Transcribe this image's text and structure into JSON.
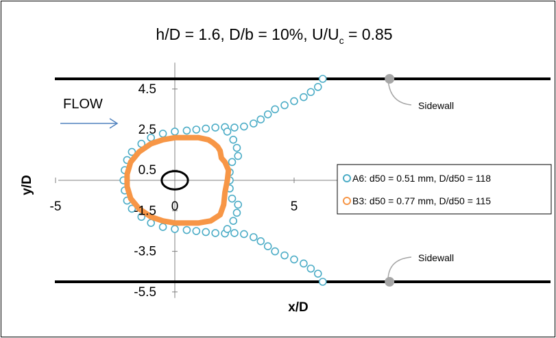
{
  "chart_data": {
    "type": "scatter",
    "title": "h/D = 1.6, D/b = 10%, U/Uc = 0.85",
    "title_parts": {
      "lead": "h/D = 1.6, D/b = 10%, U/U",
      "subscript": "c",
      "tail": " = 0.85"
    },
    "xlabel": "x/D",
    "ylabel": "y/D",
    "xlim": [
      -5,
      8.2
    ],
    "ylim": [
      -5.8,
      5.8
    ],
    "x_ticks": [
      "-5",
      "0",
      "5"
    ],
    "x_tick_values": [
      -5,
      0,
      5
    ],
    "y_ticks": [
      "4.5",
      "2.5",
      "0.5",
      "-1.5",
      "-3.5",
      "-5.5"
    ],
    "y_tick_values": [
      4.5,
      2.5,
      0.5,
      -1.5,
      -3.5,
      -5.5
    ],
    "grid": false,
    "legend_position": "right",
    "series": [
      {
        "name": "A6: d50 = 0.51 mm, D/d50 = 118",
        "color": "#4BACC6",
        "marker": "hollow-circle",
        "points": [
          [
            6.2,
            5.0
          ],
          [
            6.0,
            4.6
          ],
          [
            5.7,
            4.35
          ],
          [
            5.4,
            4.1
          ],
          [
            5.0,
            3.9
          ],
          [
            4.6,
            3.7
          ],
          [
            4.2,
            3.5
          ],
          [
            3.9,
            3.25
          ],
          [
            3.6,
            3.0
          ],
          [
            3.3,
            2.8
          ],
          [
            2.9,
            2.65
          ],
          [
            2.5,
            2.6
          ],
          [
            2.1,
            2.62
          ],
          [
            1.7,
            2.6
          ],
          [
            1.3,
            2.55
          ],
          [
            0.9,
            2.5
          ],
          [
            0.5,
            2.45
          ],
          [
            0.0,
            2.4
          ],
          [
            -0.5,
            2.3
          ],
          [
            -1.0,
            2.1
          ],
          [
            -1.4,
            1.8
          ],
          [
            -1.8,
            1.4
          ],
          [
            -2.0,
            1.0
          ],
          [
            -2.1,
            0.5
          ],
          [
            -2.15,
            0.0
          ],
          [
            -2.1,
            -0.5
          ],
          [
            -2.0,
            -1.0
          ],
          [
            -1.8,
            -1.4
          ],
          [
            -1.4,
            -1.8
          ],
          [
            -1.0,
            -2.1
          ],
          [
            -0.5,
            -2.3
          ],
          [
            0.0,
            -2.4
          ],
          [
            0.5,
            -2.45
          ],
          [
            0.9,
            -2.5
          ],
          [
            1.3,
            -2.55
          ],
          [
            1.7,
            -2.6
          ],
          [
            2.1,
            -2.62
          ],
          [
            2.5,
            -2.6
          ],
          [
            2.9,
            -2.65
          ],
          [
            3.3,
            -2.8
          ],
          [
            3.6,
            -3.0
          ],
          [
            3.9,
            -3.25
          ],
          [
            4.2,
            -3.5
          ],
          [
            4.6,
            -3.7
          ],
          [
            5.0,
            -3.9
          ],
          [
            5.4,
            -4.1
          ],
          [
            5.7,
            -4.35
          ],
          [
            6.0,
            -4.6
          ],
          [
            6.2,
            -5.0
          ],
          [
            2.2,
            2.4
          ],
          [
            2.45,
            2.0
          ],
          [
            2.6,
            1.6
          ],
          [
            2.65,
            1.2
          ],
          [
            2.4,
            0.9
          ],
          [
            2.3,
            0.4
          ],
          [
            2.3,
            0.0
          ],
          [
            2.3,
            -0.4
          ],
          [
            2.4,
            -0.9
          ],
          [
            2.65,
            -1.2
          ],
          [
            2.6,
            -1.6
          ],
          [
            2.45,
            -2.0
          ],
          [
            2.2,
            -2.4
          ]
        ]
      },
      {
        "name": "B3: d50 = 0.77 mm,  D/d50 = 115",
        "color": "#F79646",
        "marker": "filled-thick-line",
        "points": [
          [
            1.4,
            2.0
          ],
          [
            1.0,
            2.1
          ],
          [
            0.5,
            2.1
          ],
          [
            0.0,
            2.1
          ],
          [
            -0.5,
            2.0
          ],
          [
            -1.0,
            1.8
          ],
          [
            -1.5,
            1.4
          ],
          [
            -1.85,
            0.9
          ],
          [
            -2.0,
            0.3
          ],
          [
            -2.0,
            -0.3
          ],
          [
            -1.85,
            -0.9
          ],
          [
            -1.5,
            -1.4
          ],
          [
            -1.0,
            -1.8
          ],
          [
            -0.5,
            -2.0
          ],
          [
            0.0,
            -2.1
          ],
          [
            0.5,
            -2.1
          ],
          [
            1.0,
            -2.1
          ],
          [
            1.5,
            -2.0
          ],
          [
            1.9,
            -1.7
          ],
          [
            2.05,
            -1.2
          ],
          [
            2.1,
            -0.6
          ],
          [
            2.2,
            0.0
          ],
          [
            2.25,
            0.5
          ],
          [
            2.1,
            0.9
          ],
          [
            1.95,
            1.1
          ],
          [
            1.9,
            1.45
          ],
          [
            1.8,
            1.65
          ],
          [
            1.6,
            1.85
          ],
          [
            1.4,
            2.0
          ]
        ]
      }
    ],
    "pier": {
      "label": "",
      "cx": 0,
      "cy": 0,
      "rx": 0.55,
      "ry": 0.45,
      "color": "#000000"
    },
    "sidewalls": [
      {
        "y": 5.0,
        "label": "Sidewall",
        "marker_x": 9.0
      },
      {
        "y": -5.0,
        "label": "Sidewall",
        "marker_x": 9.0
      }
    ],
    "annotations": [
      {
        "text": "FLOW"
      }
    ]
  }
}
